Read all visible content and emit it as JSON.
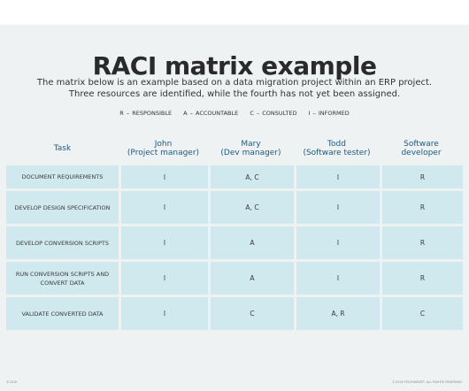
{
  "title": "RACI matrix example",
  "subtitle_line1": "The matrix below is an example based on a data migration project within an ERP project.",
  "subtitle_line2": "Three resources are identified, while the fourth has not yet been assigned.",
  "legend": [
    "R – RESPONSIBLE",
    "A – ACCOUNTABLE",
    "C – CONSULTED",
    "I – INFORMED"
  ],
  "headers": {
    "task": "Task",
    "col1_name": "John",
    "col1_role": "(Project manager)",
    "col2_name": "Mary",
    "col2_role": "(Dev manager)",
    "col3_name": "Todd",
    "col3_role": "(Software tester)",
    "col4_name": "Software",
    "col4_role": "developer"
  },
  "rows": [
    {
      "task": "DOCUMENT REQUIREMENTS",
      "v": [
        "I",
        "A, C",
        "I",
        "R"
      ]
    },
    {
      "task": "DEVELOP DESIGN SPECIFICATION",
      "v": [
        "I",
        "A, C",
        "I",
        "R"
      ]
    },
    {
      "task": "DEVELOP CONVERSION SCRIPTS",
      "v": [
        "I",
        "A",
        "I",
        "R"
      ]
    },
    {
      "task": "RUN CONVERSION SCRIPTS AND CONVERT DATA",
      "v": [
        "I",
        "A",
        "I",
        "R"
      ]
    },
    {
      "task": "VALIDATE CONVERTED DATA",
      "v": [
        "I",
        "C",
        "A, R",
        "C"
      ]
    }
  ],
  "footer_left": "©2019",
  "footer_right": "©2019 TECHTARGET. ALL RIGHTS RESERVED",
  "colors": {
    "header_text": "#1e5a86",
    "row_fill": "#cfe9ee",
    "background": "#eef2f2"
  }
}
